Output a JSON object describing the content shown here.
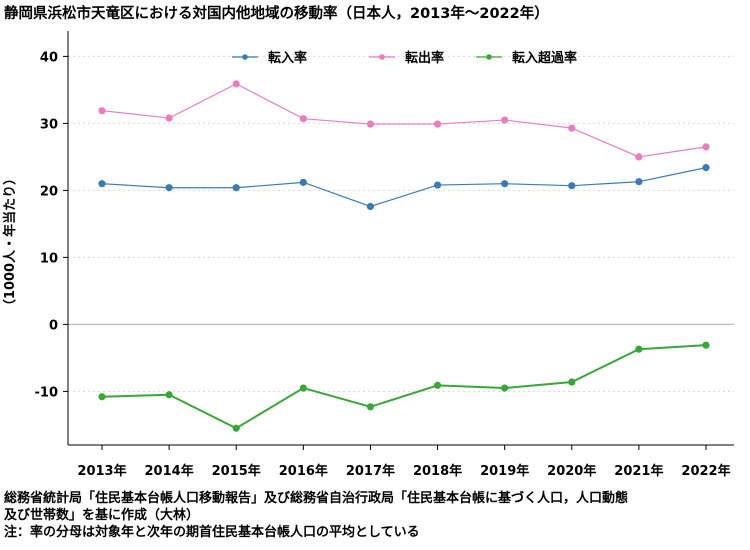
{
  "title": "静岡県浜松市天竜区における対国内他地域の移動率（日本人，2013年～2022年）",
  "notes": {
    "source_line1": "総務省統計局「住民基本台帳人口移動報告」及び総務省自治行政局「住民基本台帳に基づく人口，人口動態",
    "source_line2": "及び世帯数」を基に作成（大林）",
    "note_line": "注：率の分母は対象年と次年の期首住民基本台帳人口の平均としている"
  },
  "chart_data": {
    "type": "line",
    "title": "静岡県浜松市天竜区における対国内他地域の移動率（日本人，2013年～2022年）",
    "xlabel": "",
    "ylabel": "（1000人・年当たり）",
    "categories": [
      "2013年",
      "2014年",
      "2015年",
      "2016年",
      "2017年",
      "2018年",
      "2019年",
      "2020年",
      "2021年",
      "2022年"
    ],
    "ylim": [
      -18,
      42
    ],
    "yticks": [
      40,
      30,
      20,
      10,
      0,
      -10
    ],
    "grid": true,
    "legend_position": "top",
    "series": [
      {
        "name": "転入率",
        "color": "#3a7bb5",
        "values": [
          21.0,
          20.4,
          20.4,
          21.2,
          17.6,
          20.8,
          21.0,
          20.7,
          21.3,
          23.4
        ]
      },
      {
        "name": "転出率",
        "color": "#e87dbf",
        "values": [
          31.9,
          30.8,
          35.9,
          30.7,
          29.9,
          29.9,
          30.5,
          29.3,
          25.0,
          26.5
        ]
      },
      {
        "name": "転入超過率",
        "color": "#3aa63a",
        "values": [
          -10.8,
          -10.5,
          -15.5,
          -9.5,
          -12.3,
          -9.1,
          -9.5,
          -8.6,
          -3.7,
          -3.1
        ]
      }
    ]
  }
}
